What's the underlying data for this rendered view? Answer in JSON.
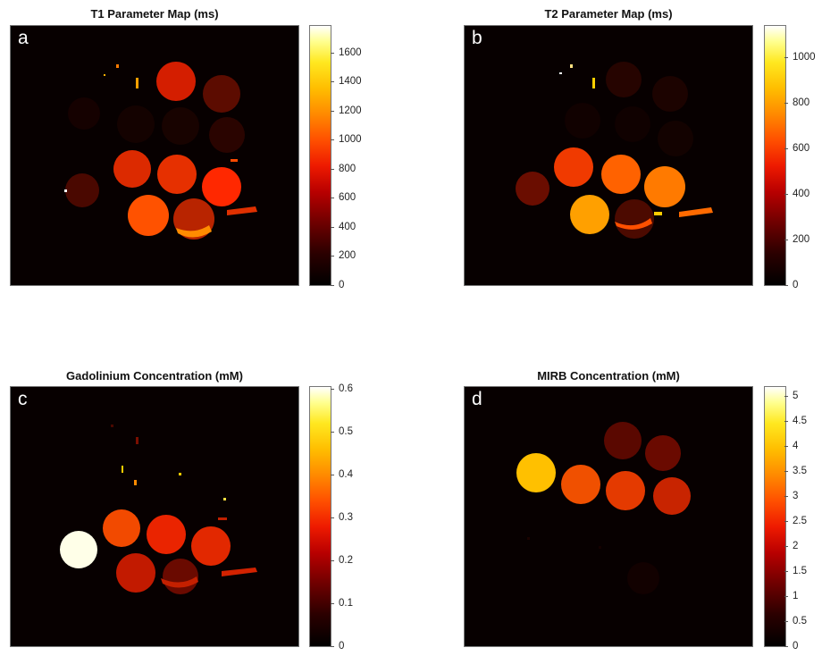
{
  "figure": {
    "panels": [
      {
        "letter": "a",
        "title": "T1 Parameter Map (ms)",
        "colorbar": {
          "min": 0,
          "max": 1780,
          "ticks": [
            "0",
            "200",
            "400",
            "600",
            "800",
            "1000",
            "1200",
            "1400",
            "1600"
          ]
        },
        "intensity_scale": [
          [
            0.06,
            0.06,
            0.04,
            0.03
          ],
          [
            0.39,
            0.41,
            0.45
          ],
          [
            0.19,
            0.43,
            0.44
          ],
          [
            0.36,
            0.45
          ]
        ]
      },
      {
        "letter": "b",
        "title": "T2 Parameter Map (ms)",
        "colorbar": {
          "min": 0,
          "max": 1130,
          "ticks": [
            "0",
            "200",
            "400",
            "600",
            "800",
            "1000"
          ]
        },
        "intensity_scale": [
          [
            0.12,
            0.1,
            0.09,
            0.08
          ],
          [
            0.46,
            0.48,
            0.5
          ],
          [
            0.2,
            0.38,
            0.58
          ],
          [
            0.62,
            0.21
          ]
        ]
      },
      {
        "letter": "c",
        "title": "Gadolinium Concentration (mM)",
        "colorbar": {
          "min": 0,
          "max": 0.6,
          "ticks": [
            "0",
            "0.1",
            "0.2",
            "0.3",
            "0.4",
            "0.5",
            "0.6"
          ]
        },
        "intensity_scale": [
          [
            0.0,
            0.0,
            0.0,
            0.0
          ],
          [
            0.0,
            0.0,
            0.0
          ],
          [
            0.92,
            0.41,
            0.38,
            0.36
          ],
          [
            0.32,
            0.3
          ]
        ]
      },
      {
        "letter": "d",
        "title": "MIRB Concentration (mM)",
        "colorbar": {
          "min": 0,
          "max": 5.2,
          "ticks": [
            "0",
            "0.5",
            "1",
            "1.5",
            "2",
            "2.5",
            "3",
            "3.5",
            "4",
            "4.5",
            "5"
          ]
        },
        "intensity_scale": [
          [
            0.62,
            0.46,
            0.43,
            0.42
          ],
          [
            0.2,
            0.22
          ],
          [
            0.0,
            0.0,
            0.0
          ],
          [
            0.0,
            0.0
          ]
        ]
      }
    ]
  },
  "chart_data": [
    {
      "type": "heatmap",
      "title": "T1 Parameter Map (ms)",
      "panel_label": "a",
      "colorbar_range": [
        0,
        1780
      ],
      "colorbar_ticks": [
        0,
        200,
        400,
        600,
        800,
        1000,
        1200,
        1400,
        1600
      ],
      "colormap": "hot",
      "unit": "ms"
    },
    {
      "type": "heatmap",
      "title": "T2 Parameter Map (ms)",
      "panel_label": "b",
      "colorbar_range": [
        0,
        1130
      ],
      "colorbar_ticks": [
        0,
        200,
        400,
        600,
        800,
        1000
      ],
      "colormap": "hot",
      "unit": "ms"
    },
    {
      "type": "heatmap",
      "title": "Gadolinium Concentration (mM)",
      "panel_label": "c",
      "colorbar_range": [
        0,
        0.6
      ],
      "colorbar_ticks": [
        0,
        0.1,
        0.2,
        0.3,
        0.4,
        0.5,
        0.6
      ],
      "colormap": "hot",
      "unit": "mM"
    },
    {
      "type": "heatmap",
      "title": "MIRB Concentration (mM)",
      "panel_label": "d",
      "colorbar_range": [
        0,
        5.2
      ],
      "colorbar_ticks": [
        0,
        0.5,
        1,
        1.5,
        2,
        2.5,
        3,
        3.5,
        4,
        4.5,
        5
      ],
      "colormap": "hot",
      "unit": "mM"
    }
  ]
}
